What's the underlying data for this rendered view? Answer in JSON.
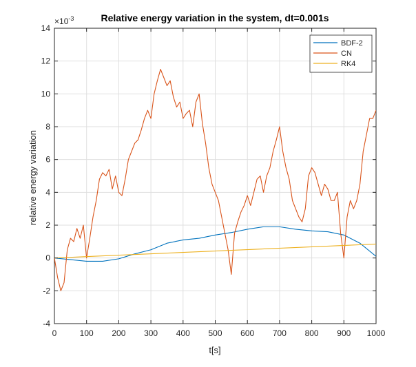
{
  "chart_data": {
    "type": "line",
    "title": "Relative energy variation in the system, dt=0.001s",
    "xlabel": "t[s]",
    "ylabel": "relative energy variation",
    "y_exponent_label": "10",
    "y_exponent_prefix": "×",
    "y_exponent_power": "-3",
    "xlim": [
      0,
      1000
    ],
    "ylim": [
      -4,
      14
    ],
    "xticks": [
      0,
      100,
      200,
      300,
      400,
      500,
      600,
      700,
      800,
      900,
      1000
    ],
    "yticks": [
      -4,
      -2,
      0,
      2,
      4,
      6,
      8,
      10,
      12,
      14
    ],
    "xtick_labels": [
      "0",
      "100",
      "200",
      "300",
      "400",
      "500",
      "600",
      "700",
      "800",
      "900",
      "1000"
    ],
    "ytick_labels": [
      "-4",
      "-2",
      "0",
      "2",
      "4",
      "6",
      "8",
      "10",
      "12",
      "14"
    ],
    "grid": true,
    "legend_position": "top-right",
    "series": [
      {
        "name": "BDF-2",
        "color": "#0072BD",
        "x": [
          0,
          50,
          100,
          150,
          200,
          250,
          300,
          350,
          400,
          450,
          500,
          550,
          600,
          650,
          700,
          750,
          800,
          850,
          900,
          950,
          1000
        ],
        "y": [
          0.0,
          -0.1,
          -0.2,
          -0.2,
          -0.05,
          0.25,
          0.5,
          0.9,
          1.1,
          1.2,
          1.4,
          1.55,
          1.75,
          1.9,
          1.9,
          1.75,
          1.65,
          1.6,
          1.4,
          0.9,
          0.1
        ]
      },
      {
        "name": "CN",
        "color": "#D95319",
        "x": [
          0,
          10,
          20,
          30,
          40,
          50,
          60,
          70,
          80,
          90,
          100,
          110,
          120,
          130,
          140,
          150,
          160,
          170,
          180,
          190,
          200,
          210,
          220,
          230,
          240,
          250,
          260,
          270,
          280,
          290,
          300,
          310,
          320,
          330,
          340,
          350,
          360,
          370,
          380,
          390,
          400,
          410,
          420,
          430,
          440,
          450,
          460,
          470,
          480,
          490,
          500,
          510,
          520,
          530,
          540,
          550,
          560,
          570,
          580,
          590,
          600,
          610,
          620,
          630,
          640,
          650,
          660,
          670,
          680,
          690,
          700,
          710,
          720,
          730,
          740,
          750,
          760,
          770,
          780,
          790,
          800,
          810,
          820,
          830,
          840,
          850,
          860,
          870,
          880,
          890,
          900,
          910,
          920,
          930,
          940,
          950,
          960,
          970,
          980,
          990,
          1000
        ],
        "y": [
          0.0,
          -1.2,
          -2.0,
          -1.5,
          0.5,
          1.2,
          1.0,
          1.8,
          1.2,
          2.0,
          0.0,
          1.2,
          2.5,
          3.5,
          4.8,
          5.2,
          5.0,
          5.4,
          4.2,
          5.0,
          4.0,
          3.8,
          4.8,
          6.0,
          6.5,
          7.0,
          7.2,
          7.8,
          8.5,
          9.0,
          8.5,
          10.0,
          10.8,
          11.5,
          11.0,
          10.5,
          10.8,
          9.8,
          9.2,
          9.5,
          8.5,
          8.8,
          9.0,
          8.0,
          9.5,
          10.0,
          8.2,
          7.0,
          5.5,
          4.5,
          4.0,
          3.5,
          2.5,
          1.5,
          0.5,
          -1.0,
          1.5,
          2.2,
          2.8,
          3.2,
          3.8,
          3.2,
          4.0,
          4.8,
          5.0,
          4.0,
          5.0,
          5.5,
          6.5,
          7.2,
          8.0,
          6.5,
          5.5,
          4.8,
          3.5,
          3.0,
          2.5,
          2.2,
          3.0,
          5.0,
          5.5,
          5.2,
          4.5,
          3.8,
          4.5,
          4.2,
          3.5,
          3.5,
          4.0,
          1.5,
          0.0,
          2.5,
          3.5,
          3.0,
          3.5,
          4.5,
          6.5,
          7.5,
          8.5,
          8.5,
          9.0
        ]
      },
      {
        "name": "RK4",
        "color": "#EDB120",
        "x": [
          0,
          1000
        ],
        "y": [
          0.0,
          0.85
        ]
      }
    ]
  }
}
